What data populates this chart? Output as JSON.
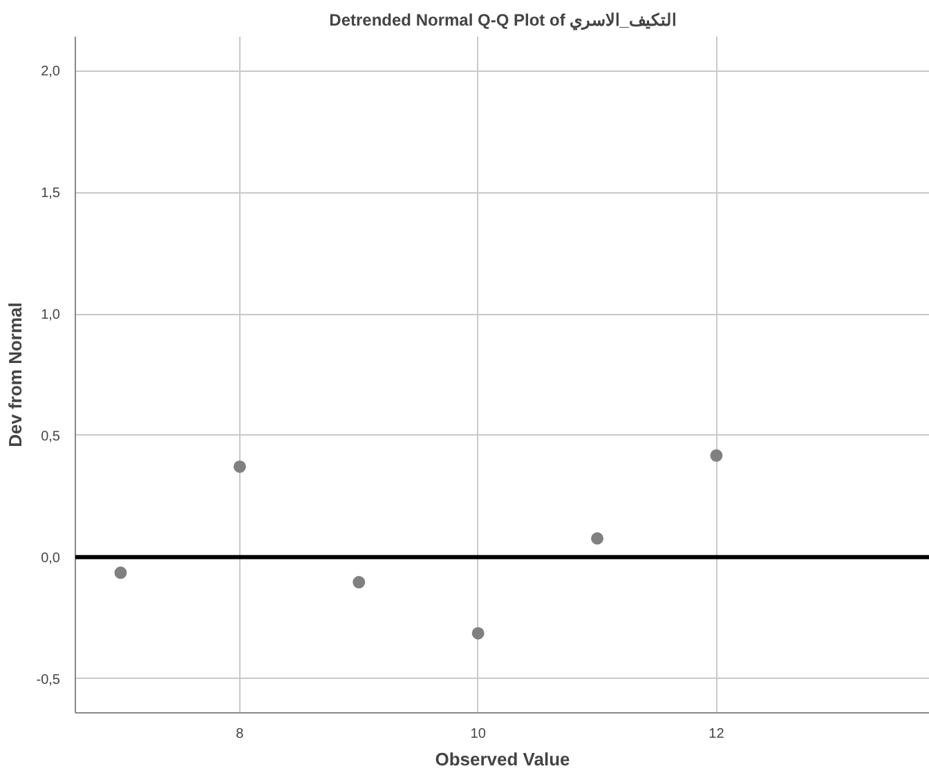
{
  "chart_data": {
    "type": "scatter",
    "title": "Detrended Normal Q-Q Plot of التكيف_الاسري",
    "xlabel": "Observed Value",
    "ylabel": "Dev from Normal",
    "x": [
      7,
      8,
      9,
      10,
      11,
      12
    ],
    "series": [
      {
        "color": "#808080",
        "values": [
          -0.064,
          0.372,
          -0.103,
          -0.313,
          0.077,
          0.418
        ]
      }
    ],
    "marker": "circle",
    "grid": true,
    "xlim": [
      6.62,
      13.79
    ],
    "xticks": [
      8,
      10,
      12
    ],
    "ylim": [
      -0.64,
      2.14
    ],
    "yticks": [
      {
        "value": -0.5,
        "label": "-0,5"
      },
      {
        "value": 0,
        "label": "0,0"
      },
      {
        "value": 0.5,
        "label": "0,5"
      },
      {
        "value": 1,
        "label": "1,0"
      },
      {
        "value": 1.5,
        "label": "1,5"
      },
      {
        "value": 2,
        "label": "2,0"
      }
    ],
    "ref_lines": [
      {
        "axis": "y",
        "value": 0,
        "color": "#000000"
      }
    ]
  }
}
